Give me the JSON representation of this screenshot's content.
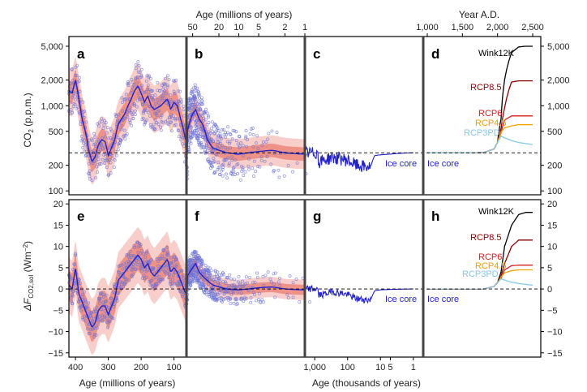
{
  "figure": {
    "top_axis_left_label": "Age (millions of years)",
    "top_axis_right_label": "Year A.D.",
    "bottom_axis_left_label": "Age (millions of years)",
    "bottom_axis_mid_label": "Age (thousands of years)",
    "ylabel_top": "CO",
    "ylabel_top_sub": "2",
    "ylabel_top_unit": " (p.p.m.)",
    "ylabel_bottom": "ΔF",
    "ylabel_bottom_sub": "CO2,sol",
    "ylabel_bottom_unit": " (Wm",
    "ylabel_bottom_sup": "−2",
    "ylabel_bottom_close": ")"
  },
  "panels": {
    "top": [
      "a",
      "b",
      "c",
      "d"
    ],
    "bottom": [
      "e",
      "f",
      "g",
      "h"
    ]
  },
  "annotations": {
    "ice_core": "Ice core",
    "scenarios": [
      {
        "name": "Wink12K",
        "color": "#000000"
      },
      {
        "name": "RCP8.5",
        "color": "#8b0000"
      },
      {
        "name": "RCP6",
        "color": "#d62020"
      },
      {
        "name": "RCP4.5",
        "color": "#f0a000"
      },
      {
        "name": "RCP3PD",
        "color": "#87c8e8"
      }
    ]
  },
  "chart_data": [
    {
      "type": "scatter",
      "panel": "a",
      "xlabel": "Age (millions of years)",
      "ylabel": "CO2 (p.p.m.)",
      "x_ticks": [
        "400",
        "300",
        "200",
        "100"
      ],
      "y_ticks": [
        "100",
        "200",
        "500",
        "1,000",
        "2,000",
        "5,000"
      ],
      "y_scale": "log",
      "ylim": [
        90,
        6500
      ],
      "reference_line": 280,
      "series": [
        {
          "x": [
            420,
            410,
            400,
            390,
            380,
            370,
            360,
            350,
            340,
            330,
            320,
            310,
            300,
            290,
            280,
            270,
            260,
            250,
            240,
            230,
            220,
            210,
            200,
            190,
            180,
            170,
            160,
            150,
            140,
            130,
            120,
            110,
            100,
            90,
            80,
            70,
            65
          ],
          "values": [
            1500,
            1400,
            2000,
            1200,
            700,
            500,
            300,
            220,
            250,
            350,
            400,
            380,
            260,
            320,
            400,
            600,
            700,
            800,
            1000,
            1200,
            1500,
            1700,
            1400,
            1100,
            1300,
            1000,
            900,
            950,
            1000,
            1100,
            1200,
            900,
            1100,
            1000,
            700,
            500,
            400
          ]
        }
      ]
    },
    {
      "type": "scatter",
      "panel": "b",
      "x_ticks": [
        "50",
        "20",
        "10",
        "5",
        "2",
        "1"
      ],
      "y_scale": "log",
      "reference_line": 280,
      "series": [
        {
          "x": [
            60,
            50,
            45,
            40,
            35,
            30,
            25,
            20,
            15,
            10,
            7,
            5,
            3,
            2,
            1
          ],
          "values": [
            500,
            800,
            900,
            700,
            600,
            400,
            320,
            300,
            280,
            270,
            280,
            290,
            300,
            280,
            270
          ]
        }
      ]
    },
    {
      "type": "line",
      "panel": "c",
      "xlabel": "Age (thousands of years)",
      "x_ticks": [
        "1,000",
        "100",
        "10",
        "5",
        "1"
      ],
      "y_scale": "log",
      "series": [
        {
          "x": [
            800,
            500,
            300,
            150,
            100,
            50,
            20,
            15,
            10,
            5,
            1
          ],
          "values": [
            220,
            230,
            250,
            240,
            230,
            200,
            190,
            260,
            265,
            270,
            280
          ]
        }
      ]
    },
    {
      "type": "line",
      "panel": "d",
      "x_ticks": [
        "1,000",
        "1,500",
        "2,000",
        "2,500"
      ],
      "y_ticks": [
        "100",
        "200",
        "500",
        "1,000",
        "2,000",
        "5,000"
      ],
      "y_scale": "log",
      "series": [
        {
          "name": "Wink12K",
          "x": [
            1000,
            1500,
            1800,
            1950,
            2000,
            2050,
            2100,
            2200,
            2300,
            2400,
            2500
          ],
          "values": [
            280,
            280,
            282,
            310,
            370,
            700,
            2000,
            4200,
            4900,
            5000,
            5000
          ]
        },
        {
          "name": "RCP8.5",
          "x": [
            1000,
            1500,
            1800,
            1950,
            2000,
            2050,
            2100,
            2200,
            2300,
            2400,
            2500
          ],
          "values": [
            280,
            280,
            282,
            310,
            370,
            540,
            940,
            1900,
            1960,
            1960,
            1960
          ]
        },
        {
          "name": "RCP6",
          "x": [
            1000,
            1500,
            1800,
            1950,
            2000,
            2050,
            2100,
            2200,
            2300,
            2400,
            2500
          ],
          "values": [
            280,
            280,
            282,
            310,
            370,
            480,
            680,
            760,
            760,
            760,
            760
          ]
        },
        {
          "name": "RCP4.5",
          "x": [
            1000,
            1500,
            1800,
            1950,
            2000,
            2050,
            2100,
            2200,
            2300,
            2400,
            2500
          ],
          "values": [
            280,
            280,
            282,
            310,
            370,
            490,
            550,
            580,
            600,
            600,
            600
          ]
        },
        {
          "name": "RCP3PD",
          "x": [
            1000,
            1500,
            1800,
            1950,
            2000,
            2050,
            2100,
            2200,
            2300,
            2400,
            2500
          ],
          "values": [
            280,
            280,
            282,
            310,
            370,
            440,
            420,
            390,
            370,
            360,
            350
          ]
        }
      ]
    },
    {
      "type": "scatter",
      "panel": "e",
      "ylabel": "ΔF CO2,sol (Wm−2)",
      "x_ticks": [
        "400",
        "300",
        "200",
        "100"
      ],
      "y_ticks": [
        "−15",
        "−10",
        "−5",
        "0",
        "5",
        "10",
        "15",
        "20"
      ],
      "ylim": [
        -16,
        21
      ],
      "reference_line": 0,
      "series": [
        {
          "x": [
            420,
            410,
            400,
            390,
            380,
            370,
            360,
            350,
            340,
            330,
            320,
            310,
            300,
            290,
            280,
            270,
            260,
            250,
            240,
            230,
            220,
            210,
            200,
            190,
            180,
            170,
            160,
            150,
            140,
            130,
            120,
            110,
            100,
            90,
            80,
            70,
            65
          ],
          "values": [
            1,
            0,
            5,
            -1,
            -3,
            -5,
            -7,
            -9,
            -8,
            -5,
            -4,
            -4,
            -6,
            -4,
            -2,
            2,
            3,
            4,
            5,
            6,
            7,
            8,
            7,
            5,
            6,
            4,
            3,
            4,
            5,
            6,
            7,
            4,
            5,
            4,
            2,
            0,
            -1
          ]
        }
      ]
    },
    {
      "type": "scatter",
      "panel": "f",
      "reference_line": 0,
      "series": [
        {
          "x": [
            60,
            50,
            45,
            40,
            35,
            30,
            25,
            20,
            15,
            10,
            7,
            5,
            3,
            2,
            1
          ],
          "values": [
            3,
            5,
            6,
            4,
            3,
            2,
            1,
            0.5,
            0,
            -0.2,
            0,
            0.3,
            0.5,
            0,
            -0.2
          ]
        }
      ]
    },
    {
      "type": "line",
      "panel": "g",
      "xlabel": "Age (thousands of years)",
      "x_ticks": [
        "1,000",
        "100",
        "10",
        "5",
        "1"
      ],
      "series": [
        {
          "x": [
            800,
            500,
            300,
            150,
            100,
            50,
            20,
            15,
            10,
            5,
            1
          ],
          "values": [
            -1.5,
            -1.2,
            -0.6,
            -1,
            -1.3,
            -2.3,
            -2.6,
            -0.4,
            -0.2,
            -0.1,
            0
          ]
        }
      ]
    },
    {
      "type": "line",
      "panel": "h",
      "x_ticks": [
        "1,000",
        "1,500",
        "2,000",
        "2,500"
      ],
      "y_ticks": [
        "−15",
        "−10",
        "−5",
        "0",
        "5",
        "10",
        "15",
        "20"
      ],
      "series": [
        {
          "name": "Wink12K",
          "x": [
            1000,
            1500,
            1800,
            1950,
            2000,
            2050,
            2100,
            2200,
            2300,
            2400,
            2500
          ],
          "values": [
            0,
            0,
            0,
            0.6,
            1.5,
            4,
            10,
            15,
            17.5,
            18,
            18
          ]
        },
        {
          "name": "RCP8.5",
          "x": [
            1000,
            1500,
            1800,
            1950,
            2000,
            2050,
            2100,
            2200,
            2300,
            2400,
            2500
          ],
          "values": [
            0,
            0,
            0,
            0.6,
            1.5,
            3,
            6,
            10,
            11.5,
            11.5,
            11.5
          ]
        },
        {
          "name": "RCP6",
          "x": [
            1000,
            1500,
            1800,
            1950,
            2000,
            2050,
            2100,
            2200,
            2300,
            2400,
            2500
          ],
          "values": [
            0,
            0,
            0,
            0.6,
            1.5,
            2.5,
            4.5,
            5.5,
            5.6,
            5.6,
            5.6
          ]
        },
        {
          "name": "RCP4.5",
          "x": [
            1000,
            1500,
            1800,
            1950,
            2000,
            2050,
            2100,
            2200,
            2300,
            2400,
            2500
          ],
          "values": [
            0,
            0,
            0,
            0.6,
            1.5,
            2.8,
            3.8,
            4.3,
            4.5,
            4.5,
            4.5
          ]
        },
        {
          "name": "RCP3PD",
          "x": [
            1000,
            1500,
            1800,
            1950,
            2000,
            2050,
            2100,
            2200,
            2300,
            2400,
            2500
          ],
          "values": [
            0,
            0,
            0,
            0.6,
            1.5,
            2.4,
            2.1,
            1.6,
            1.3,
            1.1,
            0.9
          ]
        }
      ]
    }
  ]
}
